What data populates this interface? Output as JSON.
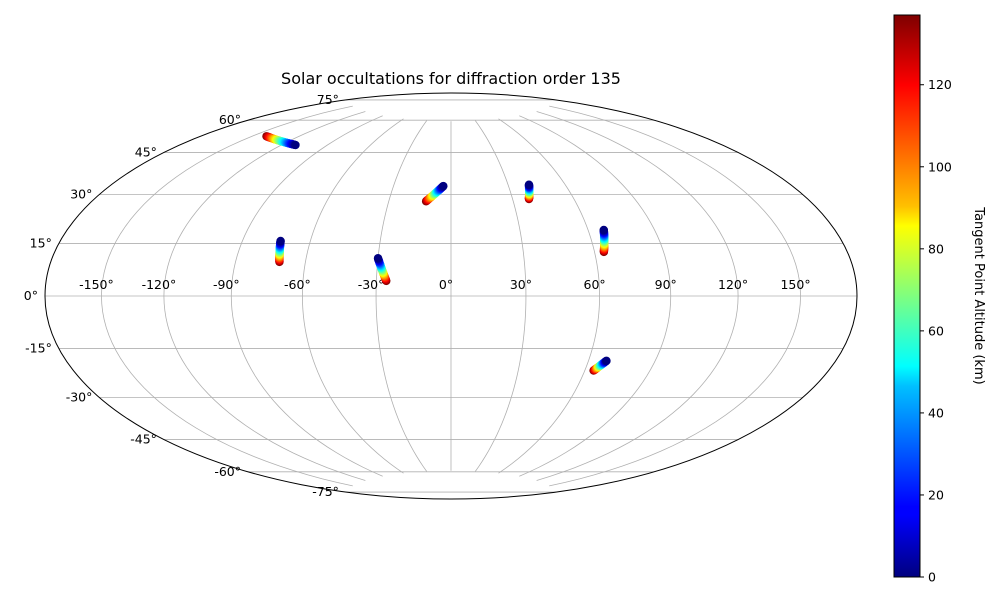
{
  "chart_data": {
    "type": "scatter",
    "projection": "hammer",
    "title": "Solar occultations for diffraction order 135",
    "lon_ticks": [
      -150,
      -120,
      -90,
      -60,
      -30,
      0,
      30,
      60,
      90,
      120,
      150
    ],
    "lon_tick_labels": [
      "-150°",
      "-120°",
      "-90°",
      "-60°",
      "-30°",
      "0°",
      "30°",
      "60°",
      "90°",
      "120°",
      "150°"
    ],
    "lat_ticks": [
      -75,
      -60,
      -45,
      -30,
      -15,
      0,
      15,
      30,
      45,
      60,
      75
    ],
    "lat_tick_labels": [
      "-75°",
      "-60°",
      "-45°",
      "-30°",
      "-15°",
      "0°",
      "15°",
      "30°",
      "45°",
      "60°",
      "75°"
    ],
    "grid": true,
    "colormap": "jet",
    "colorbar": {
      "label": "Tangent Point Altitude (km)",
      "range": [
        0,
        137
      ],
      "ticks": [
        0,
        20,
        40,
        60,
        80,
        100,
        120
      ],
      "tick_labels": [
        "0",
        "20",
        "40",
        "60",
        "80",
        "100",
        "120"
      ]
    },
    "tracks": [
      {
        "lon_start": -111,
        "lat_start": 58,
        "lon_end": -141,
        "lat_end": 58.5,
        "alt_start": 0,
        "alt_end": 137
      },
      {
        "lon_start": -4,
        "lat_start": 45,
        "lon_end": -12,
        "lat_end": 38.5,
        "alt_start": 0,
        "alt_end": 137
      },
      {
        "lon_start": 41,
        "lat_start": 45,
        "lon_end": 38,
        "lat_end": 39,
        "alt_start": 0,
        "alt_end": 137
      },
      {
        "lon_start": -73,
        "lat_start": 21,
        "lon_end": -71,
        "lat_end": 13,
        "alt_start": 0,
        "alt_end": 137
      },
      {
        "lon_start": -30,
        "lat_start": 15,
        "lon_end": -26,
        "lat_end": 6,
        "alt_start": 0,
        "alt_end": 137
      },
      {
        "lon_start": 67,
        "lat_start": 25.5,
        "lon_end": 64,
        "lat_end": 17,
        "alt_start": 0,
        "alt_end": 137
      },
      {
        "lon_start": 68,
        "lat_start": -25,
        "lon_end": 64,
        "lat_end": -29,
        "alt_start": 0,
        "alt_end": 137
      }
    ]
  }
}
